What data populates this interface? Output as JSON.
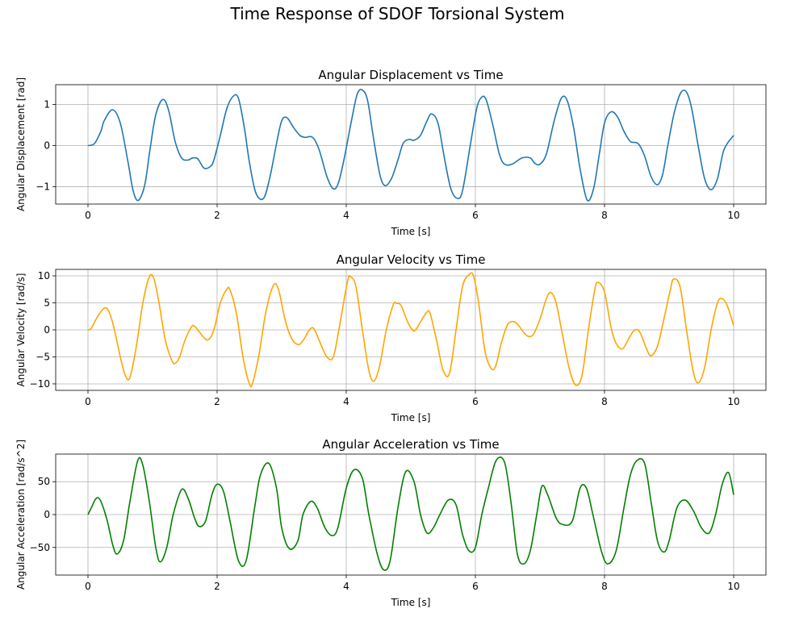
{
  "figure": {
    "title": "Time Response of SDOF Torsional System"
  },
  "chart_data": [
    {
      "type": "line",
      "title": "Angular Displacement vs Time",
      "xlabel": "Time [s]",
      "ylabel": "Angular Displacement [rad]",
      "xlim": [
        -0.5,
        10.5
      ],
      "ylim": [
        -1.42,
        1.48
      ],
      "xticks": [
        0,
        2,
        4,
        6,
        8,
        10
      ],
      "yticks": [
        -1,
        0,
        1
      ],
      "ytick_labels": [
        "−1",
        "0",
        "1"
      ],
      "grid": true,
      "color": "#1f77b4",
      "series": [
        {
          "x": [
            0,
            0.1,
            0.2,
            0.25,
            0.38,
            0.5,
            0.62,
            0.7,
            0.78,
            0.88,
            0.96,
            1.05,
            1.16,
            1.25,
            1.35,
            1.45,
            1.55,
            1.62,
            1.7,
            1.8,
            1.9,
            1.95,
            2.05,
            2.15,
            2.25,
            2.33,
            2.42,
            2.5,
            2.6,
            2.72,
            2.82,
            2.92,
            3.0,
            3.08,
            3.18,
            3.28,
            3.36,
            3.48,
            3.58,
            3.7,
            3.8,
            3.88,
            3.97,
            4.08,
            4.17,
            4.25,
            4.33,
            4.42,
            4.52,
            4.6,
            4.7,
            4.8,
            4.88,
            4.97,
            5.05,
            5.15,
            5.25,
            5.32,
            5.42,
            5.52,
            5.62,
            5.72,
            5.8,
            5.92,
            6.02,
            6.1,
            6.17,
            6.27,
            6.37,
            6.45,
            6.57,
            6.72,
            6.85,
            6.92,
            7.0,
            7.1,
            7.22,
            7.33,
            7.42,
            7.52,
            7.62,
            7.73,
            7.83,
            7.92,
            8.0,
            8.1,
            8.2,
            8.3,
            8.4,
            8.52,
            8.62,
            8.72,
            8.82,
            8.9,
            8.98,
            9.08,
            9.18,
            9.27,
            9.35,
            9.45,
            9.55,
            9.65,
            9.75,
            9.85,
            10.0
          ],
          "y": [
            0,
            0.05,
            0.35,
            0.6,
            0.87,
            0.55,
            -0.4,
            -1.1,
            -1.33,
            -0.95,
            -0.1,
            0.75,
            1.12,
            0.85,
            0.1,
            -0.3,
            -0.35,
            -0.3,
            -0.32,
            -0.55,
            -0.5,
            -0.35,
            0.25,
            0.9,
            1.2,
            1.15,
            0.45,
            -0.4,
            -1.15,
            -1.28,
            -0.75,
            0.05,
            0.6,
            0.68,
            0.45,
            0.25,
            0.2,
            0.2,
            -0.1,
            -0.75,
            -1.05,
            -0.9,
            -0.3,
            0.6,
            1.25,
            1.35,
            1.1,
            0.2,
            -0.7,
            -0.97,
            -0.8,
            -0.35,
            0.05,
            0.15,
            0.13,
            0.25,
            0.6,
            0.77,
            0.55,
            -0.3,
            -1.05,
            -1.28,
            -1.1,
            0.0,
            0.9,
            1.18,
            1.1,
            0.5,
            -0.2,
            -0.45,
            -0.45,
            -0.3,
            -0.3,
            -0.43,
            -0.45,
            -0.2,
            0.6,
            1.15,
            1.1,
            0.45,
            -0.55,
            -1.32,
            -1.05,
            -0.2,
            0.55,
            0.82,
            0.7,
            0.35,
            0.1,
            0.05,
            -0.25,
            -0.75,
            -0.95,
            -0.7,
            0.0,
            0.8,
            1.28,
            1.3,
            0.9,
            0.0,
            -0.8,
            -1.07,
            -0.8,
            -0.1,
            0.25
          ]
        }
      ]
    },
    {
      "type": "line",
      "title": "Angular Velocity vs Time",
      "xlabel": "Time [s]",
      "ylabel": "Angular Velocity [rad/s]",
      "xlim": [
        -0.5,
        10.5
      ],
      "ylim": [
        -11.2,
        11.2
      ],
      "xticks": [
        0,
        2,
        4,
        6,
        8,
        10
      ],
      "yticks": [
        -10,
        -5,
        0,
        5,
        10
      ],
      "ytick_labels": [
        "−10",
        "−5",
        "0",
        "5",
        "10"
      ],
      "grid": true,
      "color": "#ffa500",
      "series": [
        {
          "x": [
            0,
            0.05,
            0.15,
            0.25,
            0.32,
            0.4,
            0.5,
            0.58,
            0.65,
            0.75,
            0.85,
            0.95,
            1.02,
            1.1,
            1.2,
            1.3,
            1.35,
            1.42,
            1.5,
            1.6,
            1.65,
            1.72,
            1.8,
            1.87,
            1.95,
            2.05,
            2.15,
            2.2,
            2.3,
            2.4,
            2.5,
            2.55,
            2.65,
            2.75,
            2.87,
            2.95,
            3.05,
            3.15,
            3.25,
            3.33,
            3.43,
            3.5,
            3.6,
            3.7,
            3.8,
            3.9,
            4.02,
            4.07,
            4.15,
            4.25,
            4.35,
            4.43,
            4.52,
            4.62,
            4.73,
            4.78,
            4.85,
            4.95,
            5.05,
            5.15,
            5.25,
            5.3,
            5.4,
            5.5,
            5.6,
            5.7,
            5.8,
            5.9,
            5.97,
            6.05,
            6.15,
            6.25,
            6.32,
            6.4,
            6.5,
            6.6,
            6.67,
            6.75,
            6.82,
            6.9,
            7.0,
            7.1,
            7.17,
            7.25,
            7.35,
            7.45,
            7.55,
            7.65,
            7.75,
            7.85,
            7.9,
            8.0,
            8.1,
            8.18,
            8.28,
            8.38,
            8.47,
            8.55,
            8.65,
            8.72,
            8.82,
            8.92,
            9.02,
            9.07,
            9.17,
            9.27,
            9.37,
            9.45,
            9.55,
            9.65,
            9.75,
            9.82,
            9.9,
            10.0
          ],
          "y": [
            0,
            0.3,
            2.5,
            4.0,
            3.5,
            0.5,
            -5.0,
            -8.5,
            -8.8,
            -3.0,
            5.0,
            9.8,
            9.5,
            5.0,
            -2.0,
            -5.7,
            -6.2,
            -5.0,
            -2.0,
            0.5,
            0.7,
            -0.3,
            -1.5,
            -1.8,
            0.0,
            5.0,
            7.5,
            7.4,
            3.0,
            -5.0,
            -10.0,
            -9.8,
            -4.5,
            3.0,
            8.2,
            7.5,
            2.0,
            -1.5,
            -2.7,
            -2.0,
            0.0,
            0.2,
            -2.5,
            -5.0,
            -5.0,
            1.0,
            9.0,
            9.8,
            8.0,
            0.0,
            -7.5,
            -9.5,
            -6.5,
            0.0,
            4.7,
            4.9,
            4.5,
            1.5,
            -0.2,
            1.5,
            3.3,
            3.0,
            -2.0,
            -7.5,
            -8.0,
            0.0,
            8.0,
            10.2,
            10.0,
            5.0,
            -4.0,
            -7.2,
            -6.5,
            -2.5,
            1.0,
            1.5,
            0.8,
            -0.5,
            -1.2,
            -0.8,
            2.0,
            5.8,
            6.9,
            5.0,
            -1.0,
            -7.0,
            -10.2,
            -8.5,
            0.0,
            7.5,
            8.8,
            7.0,
            0.5,
            -2.5,
            -3.5,
            -1.5,
            0.0,
            -0.5,
            -3.5,
            -4.8,
            -3.0,
            2.0,
            7.5,
            9.4,
            8.0,
            0.0,
            -7.5,
            -9.8,
            -7.0,
            0.0,
            5.0,
            5.8,
            4.5,
            0.8
          ]
        }
      ]
    },
    {
      "type": "line",
      "title": "Angular Acceleration vs Time",
      "xlabel": "Time [s]",
      "ylabel": "Angular Acceleration [rad/s^2]",
      "xlim": [
        -0.5,
        10.5
      ],
      "ylim": [
        -92,
        92
      ],
      "xticks": [
        0,
        2,
        4,
        6,
        8,
        10
      ],
      "yticks": [
        -50,
        0,
        50
      ],
      "ytick_labels": [
        "−50",
        "0",
        "50"
      ],
      "grid": true,
      "color": "#008000",
      "series": [
        {
          "x": [
            0,
            0.05,
            0.13,
            0.2,
            0.3,
            0.38,
            0.45,
            0.55,
            0.65,
            0.77,
            0.85,
            0.95,
            1.05,
            1.12,
            1.22,
            1.32,
            1.45,
            1.55,
            1.65,
            1.72,
            1.82,
            1.92,
            2.0,
            2.1,
            2.2,
            2.33,
            2.45,
            2.58,
            2.67,
            2.8,
            2.92,
            3.0,
            3.12,
            3.25,
            3.33,
            3.45,
            3.55,
            3.67,
            3.78,
            3.87,
            4.0,
            4.12,
            4.25,
            4.35,
            4.48,
            4.58,
            4.68,
            4.8,
            4.92,
            5.05,
            5.15,
            5.25,
            5.35,
            5.45,
            5.58,
            5.7,
            5.8,
            5.9,
            6.0,
            6.1,
            6.2,
            6.32,
            6.45,
            6.55,
            6.65,
            6.75,
            6.85,
            6.95,
            7.03,
            7.12,
            7.25,
            7.35,
            7.5,
            7.62,
            7.72,
            7.82,
            7.95,
            8.05,
            8.18,
            8.3,
            8.4,
            8.5,
            8.62,
            8.72,
            8.82,
            8.92,
            9.0,
            9.12,
            9.25,
            9.38,
            9.5,
            9.62,
            9.72,
            9.82,
            9.92,
            10.0
          ],
          "y": [
            0,
            10,
            25,
            20,
            -10,
            -45,
            -60,
            -40,
            20,
            82,
            75,
            20,
            -50,
            -72,
            -50,
            0,
            38,
            25,
            -5,
            -18,
            -10,
            30,
            46,
            35,
            -10,
            -70,
            -70,
            10,
            60,
            78,
            40,
            -20,
            -52,
            -40,
            0,
            20,
            10,
            -20,
            -32,
            -20,
            40,
            68,
            55,
            0,
            -60,
            -84,
            -70,
            10,
            65,
            50,
            0,
            -28,
            -20,
            0,
            22,
            15,
            -30,
            -55,
            -50,
            0,
            40,
            82,
            80,
            20,
            -60,
            -75,
            -55,
            0,
            43,
            30,
            -5,
            -15,
            -10,
            40,
            40,
            0,
            -55,
            -75,
            -55,
            10,
            60,
            82,
            78,
            20,
            -40,
            -57,
            -40,
            10,
            22,
            5,
            -20,
            -28,
            0,
            45,
            64,
            30
          ]
        }
      ]
    }
  ]
}
